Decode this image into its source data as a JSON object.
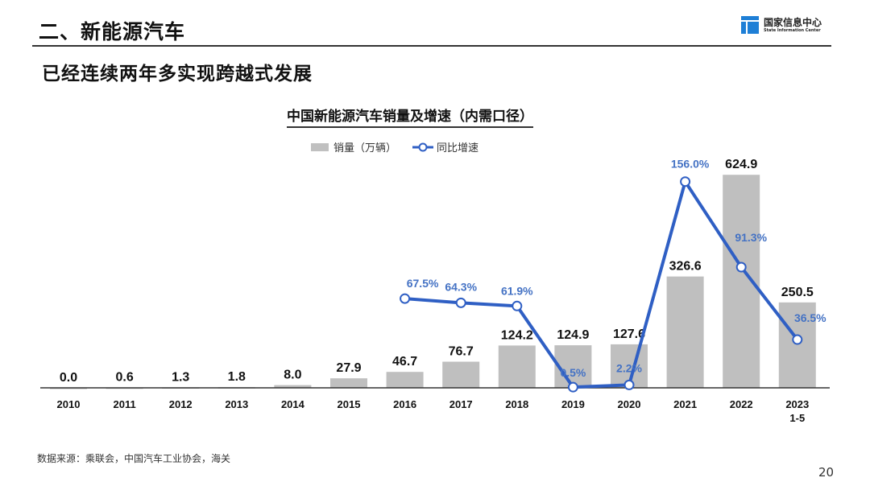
{
  "header": {
    "section_title": "二、新能源汽车",
    "subtitle": "已经连续两年多实现跨越式发展"
  },
  "logo": {
    "name_cn": "国家信息中心",
    "name_en": "State Information Center",
    "color": "#1e7fd6"
  },
  "chart_data": {
    "type": "bar+line",
    "title": "中国新能源汽车销量及增速（内需口径）",
    "categories": [
      "2010",
      "2011",
      "2012",
      "2013",
      "2014",
      "2015",
      "2016",
      "2017",
      "2018",
      "2019",
      "2020",
      "2021",
      "2022",
      "2023\n1-5"
    ],
    "series": [
      {
        "name": "销量（万辆）",
        "type": "bar",
        "color": "#bfbfbf",
        "values": [
          0.0,
          0.6,
          1.3,
          1.8,
          8.0,
          27.9,
          46.7,
          76.7,
          124.2,
          124.9,
          127.6,
          326.6,
          624.9,
          250.5
        ],
        "labels": [
          "0.0",
          "0.6",
          "1.3",
          "1.8",
          "8.0",
          "27.9",
          "46.7",
          "76.7",
          "124.2",
          "124.9",
          "127.6",
          "326.6",
          "624.9",
          "250.5"
        ]
      },
      {
        "name": "同比增速",
        "type": "line",
        "color": "#2f5fc4",
        "values": [
          null,
          null,
          null,
          null,
          null,
          null,
          67.5,
          64.3,
          61.9,
          0.5,
          2.2,
          156.0,
          91.3,
          36.5
        ],
        "labels": [
          "",
          "",
          "",
          "",
          "",
          "",
          "67.5%",
          "64.3%",
          "61.9%",
          "0.5%",
          "2.2%",
          "156.0%",
          "91.3%",
          "36.5%"
        ]
      }
    ],
    "bar_ylim": [
      0,
      760
    ],
    "line_ylim": [
      0,
      196
    ],
    "grid": false,
    "legend": "top-center"
  },
  "footer": {
    "source": "数据来源：乘联会，中国汽车工业协会，海关",
    "page_number": "20"
  }
}
